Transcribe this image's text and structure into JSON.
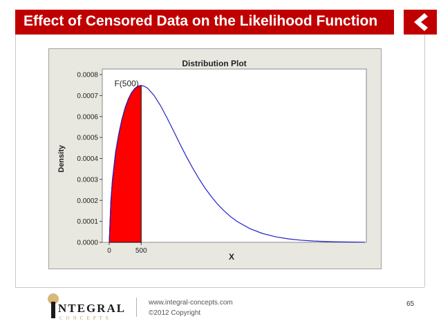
{
  "slide": {
    "title": "Effect of Censored Data on the Likelihood Function",
    "page_number": "65"
  },
  "footer": {
    "url": "www.integral-concepts.com",
    "copyright": "©2012 Copyright",
    "logo_word": "NTEGRAL",
    "logo_sub": "CONCEPTS"
  },
  "colors": {
    "title_bar": "#c00000",
    "curve": "#2020c8",
    "shaded": "#ff0000",
    "chart_bg": "#e8e8e0"
  },
  "chart_data": {
    "type": "line",
    "title": "Distribution Plot",
    "xlabel": "X",
    "ylabel": "Density",
    "xlim": [
      0,
      4000
    ],
    "ylim": [
      0,
      0.0008
    ],
    "x_ticks": [
      0,
      500
    ],
    "y_ticks": [
      "0.0000",
      "0.0001",
      "0.0002",
      "0.0003",
      "0.0004",
      "0.0005",
      "0.0006",
      "0.0007",
      "0.0008"
    ],
    "grid": false,
    "shaded_region": {
      "from": 0,
      "to": 500,
      "label": "F(500)"
    },
    "series": [
      {
        "x": [
          0,
          25,
          50,
          100,
          150,
          200,
          250,
          300,
          350,
          400,
          450,
          500,
          550,
          600,
          700,
          800,
          900,
          1000,
          1100,
          1200,
          1300,
          1400,
          1500,
          1600,
          1700,
          1800,
          1900,
          2000,
          2200,
          2400,
          2600,
          2800,
          3000,
          3200,
          3400,
          3600,
          3800,
          4000
        ],
        "y": [
          0,
          0.000194,
          0.000297,
          0.000431,
          0.000518,
          0.000588,
          0.000643,
          0.000684,
          0.000714,
          0.000734,
          0.000745,
          0.000748,
          0.000744,
          0.000735,
          0.000701,
          0.000653,
          0.000596,
          0.000535,
          0.000473,
          0.000413,
          0.000357,
          0.000305,
          0.000258,
          0.000217,
          0.00018,
          0.000149,
          0.000122,
          9.96e-05,
          6.53e-05,
          4.2e-05,
          2.65e-05,
          1.65e-05,
          1.01e-05,
          6.1e-06,
          3.6e-06,
          2.1e-06,
          1.2e-06,
          7e-07
        ]
      }
    ]
  }
}
